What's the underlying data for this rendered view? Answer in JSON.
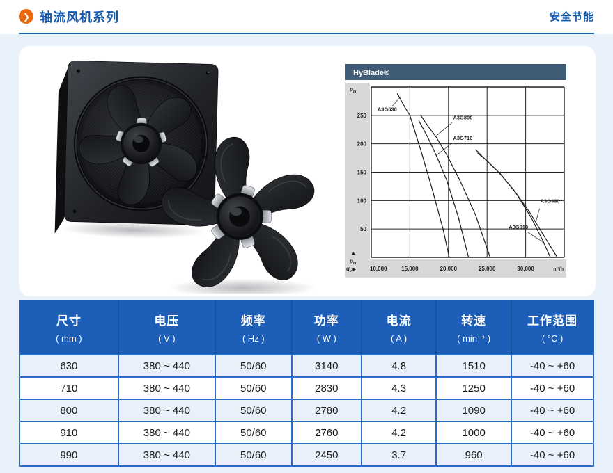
{
  "colors": {
    "page_bg": "#e9f1fb",
    "accent_orange": "#e8680f",
    "brand_blue": "#1259ad",
    "table_header_bg": "#1c5eb8",
    "table_border": "#2d6cc3",
    "row_alt_bg": "#e8f0fa",
    "chart_header_bg": "#3f5b76",
    "chart_axis_strip": "#d8d8d8"
  },
  "header": {
    "title": "轴流风机系列",
    "tagline": "安全节能",
    "bullet_icon": "❯"
  },
  "chart_data": {
    "type": "line",
    "title": "HyBlade®",
    "xlabel": "m³/h",
    "x_symbol": "qv",
    "y_symbol": "pfa",
    "up_arrow": "▲",
    "right_arrow": "▶",
    "xlim": [
      10000,
      35000
    ],
    "ylim": [
      0,
      300
    ],
    "xstep": 5000,
    "ystep": 50,
    "grid": true,
    "legend_position": "inline-labels",
    "x_tick_values": [
      10000,
      15000,
      20000,
      25000,
      30000
    ],
    "x_ticks": [
      "10,000",
      "15,000",
      "20,000",
      "25,000",
      "30,000"
    ],
    "y_tick_values": [
      250,
      200,
      150,
      100,
      50
    ],
    "y_ticks": [
      "250",
      "200",
      "150",
      "100",
      "50"
    ],
    "series": [
      {
        "name": "A3G630",
        "points": [
          [
            13350,
            289
          ],
          [
            14400,
            263
          ],
          [
            15000,
            250
          ],
          [
            16500,
            185
          ],
          [
            18000,
            115
          ],
          [
            19300,
            50
          ],
          [
            20100,
            0
          ]
        ]
      },
      {
        "name": "A3G710",
        "points": [
          [
            16150,
            241
          ],
          [
            17300,
            212
          ],
          [
            18400,
            180
          ],
          [
            19800,
            135
          ],
          [
            21300,
            70
          ],
          [
            22600,
            0
          ]
        ]
      },
      {
        "name": "A3G800",
        "points": [
          [
            16350,
            251
          ],
          [
            17500,
            228
          ],
          [
            18300,
            214
          ],
          [
            19800,
            180
          ],
          [
            21500,
            135
          ],
          [
            23500,
            75
          ],
          [
            25400,
            0
          ]
        ]
      },
      {
        "name": "A3G910",
        "points": [
          [
            23750,
            184
          ],
          [
            25000,
            170
          ],
          [
            26800,
            146
          ],
          [
            28800,
            112
          ],
          [
            30800,
            68
          ],
          [
            32200,
            30
          ],
          [
            33200,
            0
          ]
        ]
      },
      {
        "name": "A3G990",
        "points": [
          [
            23500,
            190
          ],
          [
            24800,
            172
          ],
          [
            26500,
            150
          ],
          [
            28500,
            118
          ],
          [
            30500,
            80
          ],
          [
            32500,
            35
          ],
          [
            34100,
            0
          ]
        ]
      }
    ],
    "labels": [
      {
        "text": "A3G630",
        "tx": 10800,
        "ty": 258,
        "leader": [
          [
            12700,
            266
          ],
          [
            13750,
            282
          ]
        ]
      },
      {
        "text": "A3G800",
        "tx": 20600,
        "ty": 243,
        "leader": [
          [
            20450,
            237
          ],
          [
            18350,
            213
          ]
        ]
      },
      {
        "text": "A3G710",
        "tx": 20600,
        "ty": 207,
        "leader": [
          [
            20450,
            201
          ],
          [
            18450,
            180
          ]
        ]
      },
      {
        "text": "A3G990",
        "tx": 31900,
        "ty": 96,
        "leader": [
          [
            31800,
            86
          ],
          [
            31350,
            64
          ]
        ]
      },
      {
        "text": "A3G910",
        "tx": 27800,
        "ty": 50,
        "leader": [
          [
            30300,
            44
          ],
          [
            32350,
            26
          ]
        ]
      }
    ]
  },
  "table": {
    "columns": [
      {
        "title": "尺寸",
        "unit": "( mm )"
      },
      {
        "title": "电压",
        "unit": "( V )"
      },
      {
        "title": "频率",
        "unit": "( Hz )"
      },
      {
        "title": "功率",
        "unit": "( W )"
      },
      {
        "title": "电流",
        "unit": "( A )"
      },
      {
        "title": "转速",
        "unit": "( min⁻¹ )"
      },
      {
        "title": "工作范围",
        "unit": "( °C )"
      }
    ],
    "rows": [
      [
        "630",
        "380 ~ 440",
        "50/60",
        "3140",
        "4.8",
        "1510",
        "-40 ~ +60"
      ],
      [
        "710",
        "380 ~ 440",
        "50/60",
        "2830",
        "4.3",
        "1250",
        "-40 ~ +60"
      ],
      [
        "800",
        "380 ~ 440",
        "50/60",
        "2780",
        "4.2",
        "1090",
        "-40 ~ +60"
      ],
      [
        "910",
        "380 ~ 440",
        "50/60",
        "2760",
        "4.2",
        "1000",
        "-40 ~ +60"
      ],
      [
        "990",
        "380 ~ 440",
        "50/60",
        "2450",
        "3.7",
        "960",
        "-40 ~ +60"
      ]
    ]
  }
}
